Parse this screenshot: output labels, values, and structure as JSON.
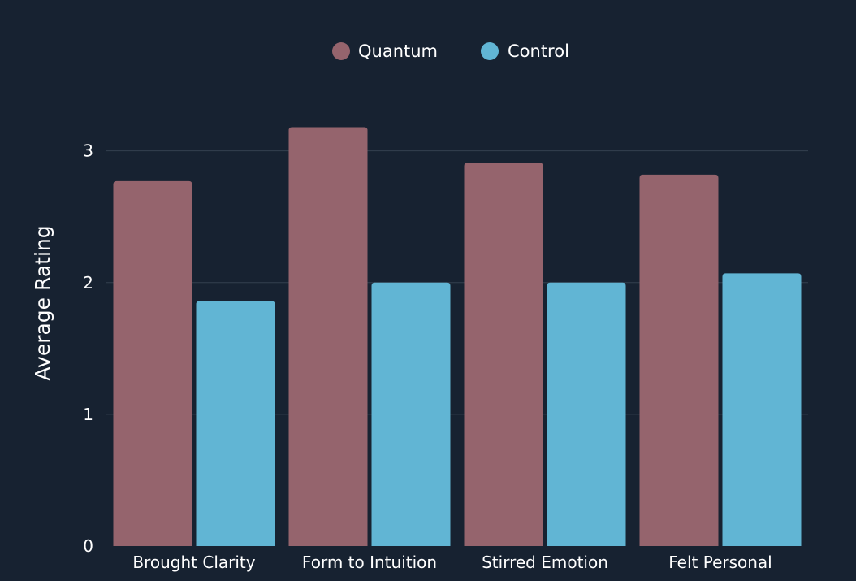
{
  "chart_data": {
    "type": "bar",
    "categories": [
      "Brought Clarity",
      "Form to Intuition",
      "Stirred Emotion",
      "Felt Personal"
    ],
    "series": [
      {
        "name": "Quantum",
        "color": "#95646d",
        "values": [
          2.77,
          3.18,
          2.91,
          2.82
        ]
      },
      {
        "name": "Control",
        "color": "#61b5d4",
        "values": [
          1.86,
          2.0,
          2.0,
          2.07
        ]
      }
    ],
    "title": "",
    "xlabel": "",
    "ylabel": "Average Rating",
    "ylim": [
      0,
      3.3
    ],
    "yticks": [
      0,
      1,
      2,
      3
    ],
    "grid": true,
    "legend_position": "top-center"
  },
  "colors": {
    "background": "#172231",
    "grid": "#34404f",
    "text": "#ffffff"
  }
}
